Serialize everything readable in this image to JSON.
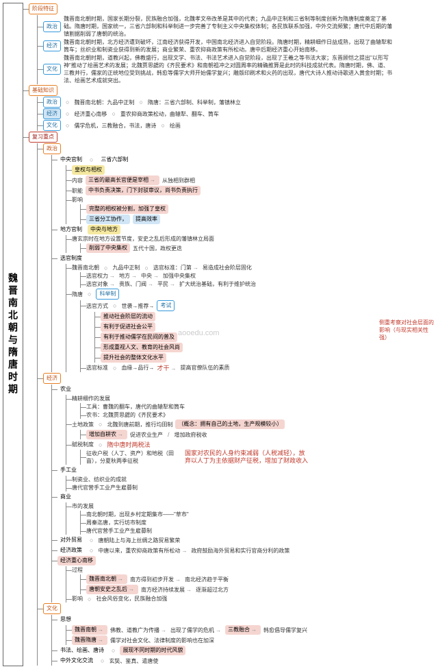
{
  "root_title": "魏晋南北朝与隋唐时期",
  "colors": {
    "orange": "#e67e22",
    "red": "#c0392b",
    "blue": "#3498db",
    "pink_hl": "#f5d5d0",
    "blue_hl": "#d0e5f5",
    "yellow_hl": "#f5e8a0",
    "line": "#888888"
  },
  "watermark": "aooedu.com",
  "side_note": "侧重考察对社会层面的影响（与现实相关性强）",
  "stage": {
    "title": "阶段特征",
    "items": [
      {
        "name": "政治",
        "text": "魏晋南北朝时期，国家长期分裂，民族融合加强，北魏孝文帝改革是其中的代表；九品中正制和三省制等制度创新为隋唐制度奠定了基础。隋唐时期，国家统一，三省六部制和科举制进一步完善了专制主义中央集权体制；各民族联系加强，中外交流频繁；唐代中后期的藩镇割据削弱了唐朝的统治。"
      },
      {
        "name": "经济",
        "text": "魏晋南北朝时期，北方经济遭到破坏，江南经济获得开发，中国南北经济进入自觉阶段。隋唐时期，精耕细作日益成熟，出现了曲辕犁和筒车；丝织业和制瓷业获得到新的发展；商业繁荣、重农抑商政策有所松动。唐中后期经济重心开始南移。"
      },
      {
        "name": "文化",
        "text": "魏晋南北朝时期，道教兴起，佛教盛行，出现文学、书法、书法艺术进入自觉阶段，出现了王羲之等书法大家；东晋顾恺之提出\"以形写神\"推动了绘画艺术的发展；北魏贾思勰的《齐民要术》和南朝祖冲之对圆周率的精确推算是此时的科技成就代表。隋唐时期，佛、道、三教并行，儒家的正统地位受到挑战，韩愈等儒学大师开始儒学复兴；雕版印刷术和火药的出现，唐代大诗人推动诗歌进入黄金时期；书法、绘画艺术成就突出。"
      }
    ]
  },
  "basic": {
    "title": "基础知识",
    "items": [
      {
        "name": "政治",
        "parts": [
          "魏晋南北朝：九品中正制",
          "隋唐：三省六部制、科举制，藩镇林立"
        ]
      },
      {
        "name": "经济",
        "parts": [
          "经济重心南移",
          "重农抑商政策松动，曲辕犁、翻车、筒车"
        ]
      },
      {
        "name": "文化",
        "parts": [
          "儒学危机，三教融合，书法，唐诗",
          "绘画"
        ]
      }
    ]
  },
  "review": {
    "title": "复习重点",
    "politics": {
      "title": "政治",
      "central": {
        "title": "中央官制",
        "sub": "三省六部制",
        "tag1": "皇权与相权",
        "content": {
          "label": "内容",
          "items": [
            "三省的最高长官便是宰相",
            "从独相到群相"
          ]
        },
        "function": {
          "label": "职能",
          "text": "中书负责决策，门下封驳审议，尚书负责执行"
        },
        "effect": {
          "label": "影响",
          "items": [
            "完整的相权被分割，加强了皇权",
            "三省分工协作，提高效率"
          ]
        }
      },
      "local": {
        "title": "地方官制",
        "tag": "中央与地方",
        "text": "唐玄宗时在地方设置节度，安史之乱后形成的藩镇林立局面",
        "results": [
          "削弱了中央集权",
          "五代十国，政权更迭"
        ]
      },
      "select": {
        "title": "选官制度",
        "wei": {
          "title": "魏晋南北朝",
          "sys": "九品中正制",
          "std": "选官标准：门第",
          "res": "易造成社会阶层固化",
          "rows": [
            [
              "选官权力",
              "地方",
              "中央",
              "加强中央集权"
            ],
            [
              "选官对象",
              "贵族、门阀",
              "平民",
              "扩大统治基础，有利于维护统治"
            ]
          ]
        },
        "sui": {
          "title": "隋唐",
          "sys": "科举制",
          "method_label": "选官方式",
          "method": "世袭→推荐→",
          "exam": "考试",
          "exam_effects": [
            "推动社会阶层的流动",
            "有利于促进社会公平",
            "有利于推动儒学在民间的普及",
            "形成重视人文、教育的社会风尚",
            "提升社会的整体文化水平"
          ],
          "std": "选官标准",
          "std_flow": [
            "血缘→品行→",
            "才干"
          ],
          "std_res": "提高官僚队伍的素质"
        }
      }
    },
    "economy": {
      "title": "经济",
      "agri": {
        "title": "农业",
        "craft": {
          "label": "精耕细作的发展",
          "items": [
            "工具：曹魏的翻车，唐代的曲辕犁和筒车",
            "农书：北魏贾思勰的《齐民要术》"
          ]
        },
        "land": {
          "label": "土地政策",
          "text": "北魏到唐前期，推行均田制",
          "note": "（概念：拥有自己的土地，生产规模较小）",
          "inc": "增加自耕农",
          "res": [
            "促进农业生产",
            "增加政府税收"
          ]
        },
        "tax": {
          "label": "赋税制度",
          "text": "隋中唐时两税法",
          "detail": "征收户税（人丁、资产）和地税（田亩），分夏秋两季征税",
          "res": "国家对农民的人身约束减弱（人税减轻），放弃以人丁为主依据财产征税，增加了财政收入"
        }
      },
      "hand": {
        "title": "手工业",
        "items": [
          "制瓷业、纺织业的成就",
          "唐代官营手工业产生雇募制"
        ]
      },
      "biz": {
        "title": "商业",
        "market": {
          "label": "市的发展",
          "items": [
            "南北朝时期，出现乡村定期集市——\"草市\"",
            "周秦迄唐，实行坊市制度",
            "唐代官营手工业产生雇募制"
          ]
        }
      },
      "trade": {
        "title": "对外贸易",
        "text": "唐朝陆上与海上丝绸之路贸易繁荣"
      },
      "policy": {
        "title": "经济政策",
        "text": "中唐以来，重农抑商政策有所松动",
        "res": "政府鼓励海外贸易和实行官商分利的政策"
      },
      "shift": {
        "title": "经济重心南移",
        "proc": {
          "label": "过程",
          "rows": [
            [
              "魏晋南北朝",
              "南方得到初步开发",
              "南北经济趋于平衡"
            ],
            [
              "唐朝安史之乱后",
              "南方经济持续发展",
              "逐渐超过北方"
            ]
          ]
        },
        "eff": {
          "label": "影响",
          "text": "社会风俗变化，民族融合加强"
        }
      }
    },
    "culture": {
      "title": "文化",
      "thought": {
        "title": "思想",
        "rows": [
          [
            "魏晋南朝",
            "佛教、道教广为传播",
            "出现了儒学的危机",
            "三教融合",
            "韩愈倡导儒学复兴"
          ],
          [
            "魏晋隋唐",
            "儒学对社会文化、法律制度的影响也在加深"
          ]
        ]
      },
      "art": {
        "title": "书法、绘画、唐诗",
        "text": "展现不同时期的时代风貌"
      },
      "exchange": {
        "title": "中外文化交流",
        "text": "玄奘、鉴真、遣唐使"
      }
    }
  }
}
